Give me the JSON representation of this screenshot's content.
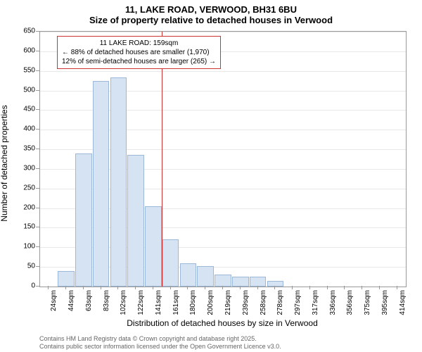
{
  "header": {
    "title_main": "11, LAKE ROAD, VERWOOD, BH31 6BU",
    "title_sub": "Size of property relative to detached houses in Verwood"
  },
  "chart": {
    "type": "histogram",
    "ylabel": "Number of detached properties",
    "xlabel": "Distribution of detached houses by size in Verwood",
    "ylim": [
      0,
      650
    ],
    "ytick_step": 50,
    "yticks": [
      0,
      50,
      100,
      150,
      200,
      250,
      300,
      350,
      400,
      450,
      500,
      550,
      600,
      650
    ],
    "xticks": [
      "24sqm",
      "44sqm",
      "63sqm",
      "83sqm",
      "102sqm",
      "122sqm",
      "141sqm",
      "161sqm",
      "180sqm",
      "200sqm",
      "219sqm",
      "239sqm",
      "258sqm",
      "278sqm",
      "297sqm",
      "317sqm",
      "336sqm",
      "356sqm",
      "375sqm",
      "395sqm",
      "414sqm"
    ],
    "bar_values": [
      0,
      40,
      340,
      525,
      533,
      335,
      205,
      120,
      60,
      52,
      30,
      25,
      25,
      15,
      0,
      0,
      0,
      0,
      0,
      0,
      0
    ],
    "bar_color": "#d6e3f3",
    "bar_border": "#9bb8d9",
    "grid_color": "#e8e8e8",
    "background_color": "#ffffff",
    "plot_border": "#999999",
    "reference_line": {
      "x_bin_index": 7,
      "color": "#cc3333",
      "label_property": "11 LAKE ROAD: 159sqm",
      "line_smaller": "← 88% of detached houses are smaller (1,970)",
      "line_larger": "12% of semi-detached houses are larger (265) →"
    },
    "annotation_box": {
      "border_color": "#cc3333",
      "bg_color": "#ffffff",
      "font_size": 10
    }
  },
  "footer": {
    "line1": "Contains HM Land Registry data © Crown copyright and database right 2025.",
    "line2": "Contains public sector information licensed under the Open Government Licence v3.0."
  }
}
